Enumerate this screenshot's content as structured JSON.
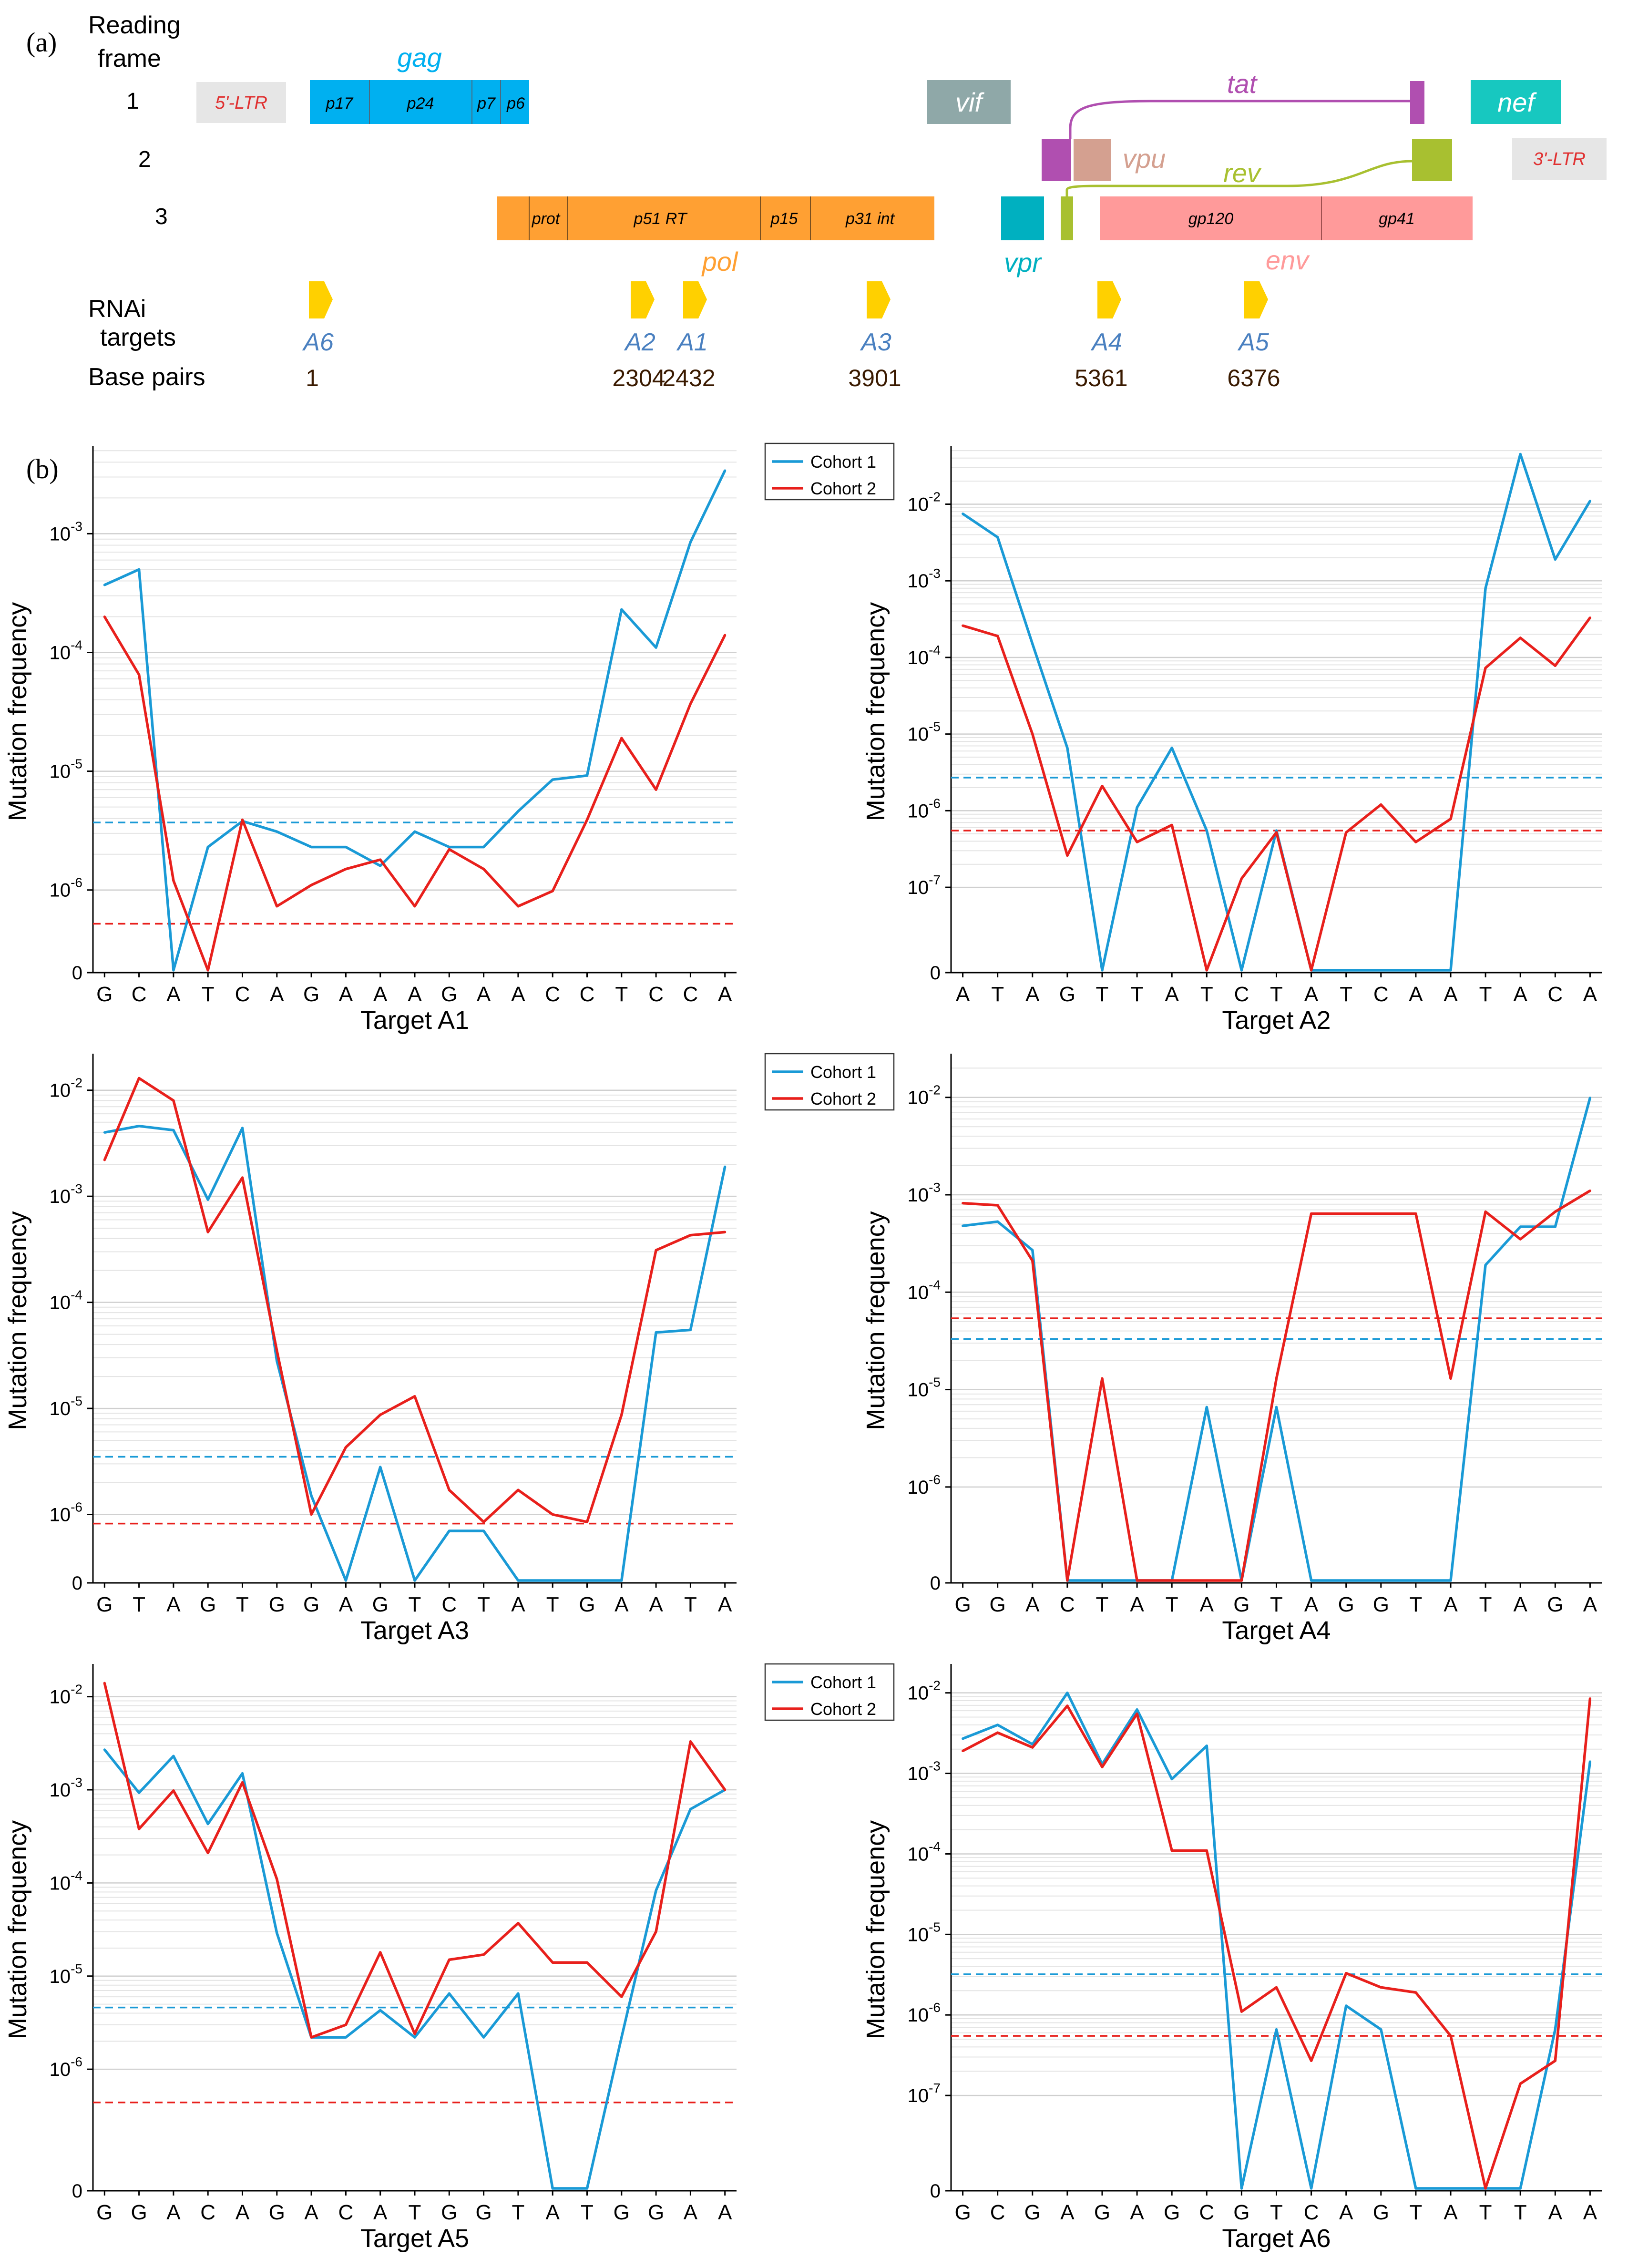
{
  "panel_a": {
    "label": "(a)",
    "reading_frame_label": [
      "Reading",
      "frame"
    ],
    "frames": [
      "1",
      "2",
      "3"
    ],
    "genes": {
      "ltr5": "5'-LTR",
      "gag": "gag",
      "p17": "p17",
      "p24": "p24",
      "p7": "p7",
      "p6": "p6",
      "vif": "vif",
      "tat": "tat",
      "nef": "nef",
      "vpu": "vpu",
      "ltr3": "3'-LTR",
      "rev": "rev",
      "prot": "prot",
      "p51rt": "p51 RT",
      "p15": "p15",
      "p31int": "p31 int",
      "pol": "pol",
      "vpr": "vpr",
      "gp120": "gp120",
      "gp41": "gp41",
      "env": "env"
    },
    "rnai_label": [
      "RNAi",
      "targets"
    ],
    "base_pairs_label": "Base pairs",
    "targets": [
      {
        "name": "A6",
        "bp": "1"
      },
      {
        "name": "A2",
        "bp": "2304"
      },
      {
        "name": "A1",
        "bp": "2432"
      },
      {
        "name": "A3",
        "bp": "3901"
      },
      {
        "name": "A4",
        "bp": "5361"
      },
      {
        "name": "A5",
        "bp": "6376"
      }
    ],
    "colors": {
      "gag": "#00b0f0",
      "pol": "#ffa033",
      "vif": "#8fa8a8",
      "tat": "#b04fb0",
      "nef": "#17c8c0",
      "vpu": "#d4a090",
      "rev": "#a8c030",
      "vpr": "#00b0c0",
      "env": "#ff9a9a",
      "ltr": "#e6e6e6",
      "ltr_text": "#e03030",
      "target": "#ffd000",
      "target_text": "#4a80c0"
    }
  },
  "panel_b_label": "(b)",
  "legend": {
    "cohort1": "Cohort 1",
    "cohort2": "Cohort 2"
  },
  "chart_data": [
    {
      "type": "line",
      "xlabel": "Target A1",
      "ylabel": "Mutation frequency",
      "categories": [
        "G",
        "C",
        "A",
        "T",
        "C",
        "A",
        "G",
        "A",
        "A",
        "A",
        "G",
        "A",
        "A",
        "C",
        "C",
        "T",
        "C",
        "C",
        "A"
      ],
      "ytick_labels": [
        "0",
        "10-6",
        "10-5",
        "10-4",
        "10-3"
      ],
      "ylim_log10": [
        -6.3,
        -2.3
      ],
      "legend": true,
      "series": [
        {
          "name": "Cohort 1",
          "color": "#1a9ad6",
          "values": [
            0.00037,
            0.0005,
            0,
            2.3e-06,
            3.8e-06,
            3.1e-06,
            2.3e-06,
            2.3e-06,
            1.6e-06,
            3.1e-06,
            2.3e-06,
            2.3e-06,
            4.6e-06,
            8.5e-06,
            9.2e-06,
            0.00023,
            0.00011,
            0.00085,
            0.0034
          ]
        },
        {
          "name": "Cohort 2",
          "color": "#e8201c",
          "values": [
            0.0002,
            6.5e-05,
            1.2e-06,
            0,
            3.9e-06,
            7.3e-07,
            1.1e-06,
            1.5e-06,
            1.8e-06,
            7.3e-07,
            2.2e-06,
            1.5e-06,
            7.3e-07,
            9.8e-07,
            3.9e-06,
            1.9e-05,
            7e-06,
            3.7e-05,
            0.00014
          ]
        }
      ],
      "thresholds": [
        {
          "name": "Cohort 1",
          "value": 3.7e-06
        },
        {
          "name": "Cohort 2",
          "value": 5.2e-07
        }
      ]
    },
    {
      "type": "line",
      "xlabel": "Target A2",
      "ylabel": "Mutation frequency",
      "categories": [
        "A",
        "T",
        "A",
        "G",
        "T",
        "T",
        "A",
        "T",
        "C",
        "T",
        "A",
        "T",
        "C",
        "A",
        "A",
        "T",
        "A",
        "C",
        "A"
      ],
      "ytick_labels": [
        "0",
        "10-7",
        "10-6",
        "10-5",
        "10-4",
        "10-3",
        "10-2"
      ],
      "ylim_log10": [
        -7.5,
        -1.3
      ],
      "legend": false,
      "series": [
        {
          "name": "Cohort 1",
          "color": "#1a9ad6",
          "values": [
            0.0075,
            0.0037,
            0.00015,
            6.6e-06,
            0,
            1.1e-06,
            6.6e-06,
            5.5e-07,
            0,
            5.5e-07,
            0,
            0,
            0,
            0,
            0,
            0.0008,
            0.045,
            0.0019,
            0.011
          ]
        },
        {
          "name": "Cohort 2",
          "color": "#e8201c",
          "values": [
            0.00026,
            0.00019,
            1e-05,
            2.6e-07,
            2.1e-06,
            3.9e-07,
            6.5e-07,
            0,
            1.3e-07,
            5.2e-07,
            0,
            5.2e-07,
            1.2e-06,
            3.9e-07,
            7.8e-07,
            7.3e-05,
            0.00018,
            7.8e-05,
            0.00033
          ]
        }
      ],
      "thresholds": [
        {
          "name": "Cohort 1",
          "value": 2.7e-06
        },
        {
          "name": "Cohort 2",
          "value": 5.5e-07
        }
      ]
    },
    {
      "type": "line",
      "xlabel": "Target A3",
      "ylabel": "Mutation frequency",
      "categories": [
        "G",
        "T",
        "A",
        "G",
        "T",
        "G",
        "G",
        "A",
        "G",
        "T",
        "C",
        "T",
        "A",
        "T",
        "G",
        "A",
        "A",
        "T",
        "A"
      ],
      "ytick_labels": [
        "0",
        "10-6",
        "10-5",
        "10-4",
        "10-3",
        "10-2"
      ],
      "ylim_log10": [
        -6.2,
        -1.7
      ],
      "legend": true,
      "series": [
        {
          "name": "Cohort 1",
          "color": "#1a9ad6",
          "values": [
            0.004,
            0.0046,
            0.0042,
            0.00093,
            0.0044,
            2.8e-05,
            1.5e-06,
            0,
            2.8e-06,
            0,
            7e-07,
            7e-07,
            0,
            0,
            0,
            0,
            5.2e-05,
            5.5e-05,
            0.0019
          ]
        },
        {
          "name": "Cohort 2",
          "color": "#e8201c",
          "values": [
            0.0022,
            0.013,
            0.008,
            0.00046,
            0.0015,
            3.5e-05,
            1e-06,
            4.3e-06,
            8.7e-06,
            1.3e-05,
            1.7e-06,
            8.5e-07,
            1.7e-06,
            1e-06,
            8.5e-07,
            8.7e-06,
            0.00031,
            0.00043,
            0.00046
          ]
        }
      ],
      "thresholds": [
        {
          "name": "Cohort 1",
          "value": 3.5e-06
        },
        {
          "name": "Cohort 2",
          "value": 8.2e-07
        }
      ]
    },
    {
      "type": "line",
      "xlabel": "Target A4",
      "ylabel": "Mutation frequency",
      "categories": [
        "G",
        "G",
        "A",
        "C",
        "T",
        "A",
        "T",
        "A",
        "G",
        "T",
        "A",
        "G",
        "G",
        "T",
        "A",
        "T",
        "A",
        "G",
        "A"
      ],
      "ytick_labels": [
        "0",
        "10-6",
        "10-5",
        "10-4",
        "10-3",
        "10-2"
      ],
      "ylim_log10": [
        -6.5,
        -1.6
      ],
      "legend": false,
      "series": [
        {
          "name": "Cohort 1",
          "color": "#1a9ad6",
          "values": [
            0.00048,
            0.00053,
            0.00027,
            0,
            0,
            0,
            0,
            6.6e-06,
            0,
            6.6e-06,
            0,
            0,
            0,
            0,
            0,
            0.00019,
            0.00047,
            0.00047,
            0.0099
          ]
        },
        {
          "name": "Cohort 2",
          "color": "#e8201c",
          "values": [
            0.00082,
            0.00078,
            0.00021,
            0,
            1.3e-05,
            0,
            0,
            0,
            0,
            1.3e-05,
            0.00064,
            0.00064,
            0.00064,
            0.00064,
            1.3e-05,
            0.00067,
            0.00035,
            0.00067,
            0.0011
          ]
        }
      ],
      "thresholds": [
        {
          "name": "Cohort 1",
          "value": 3.3e-05
        },
        {
          "name": "Cohort 2",
          "value": 5.4e-05
        }
      ]
    },
    {
      "type": "line",
      "xlabel": "Target A5",
      "ylabel": "Mutation frequency",
      "categories": [
        "G",
        "G",
        "A",
        "C",
        "A",
        "G",
        "A",
        "C",
        "A",
        "T",
        "G",
        "G",
        "T",
        "A",
        "T",
        "G",
        "G",
        "A",
        "A"
      ],
      "ytick_labels": [
        "0",
        "10-6",
        "10-5",
        "10-4",
        "10-3",
        "10-2"
      ],
      "ylim_log10": [
        -6.8,
        -1.7
      ],
      "legend": true,
      "series": [
        {
          "name": "Cohort 1",
          "color": "#1a9ad6",
          "values": [
            0.0027,
            0.00093,
            0.0023,
            0.00043,
            0.0015,
            2.9e-05,
            2.2e-06,
            2.2e-06,
            4.3e-06,
            2.2e-06,
            6.5e-06,
            2.2e-06,
            6.5e-06,
            0,
            0,
            2.2e-06,
            8.3e-05,
            0.00062,
            0.001
          ]
        },
        {
          "name": "Cohort 2",
          "color": "#e8201c",
          "values": [
            0.014,
            0.00038,
            0.00098,
            0.00021,
            0.0012,
            0.00011,
            2.2e-06,
            3e-06,
            1.8e-05,
            2.4e-06,
            1.5e-05,
            1.7e-05,
            3.7e-05,
            1.4e-05,
            1.4e-05,
            6e-06,
            3e-05,
            0.0033,
            0.001
          ]
        }
      ],
      "thresholds": [
        {
          "name": "Cohort 1",
          "value": 4.6e-06
        },
        {
          "name": "Cohort 2",
          "value": 4.4e-07
        }
      ]
    },
    {
      "type": "line",
      "xlabel": "Target A6",
      "ylabel": "Mutation frequency",
      "categories": [
        "G",
        "C",
        "G",
        "A",
        "G",
        "A",
        "G",
        "C",
        "G",
        "T",
        "C",
        "A",
        "G",
        "T",
        "A",
        "T",
        "T",
        "A",
        "A"
      ],
      "ytick_labels": [
        "0",
        "10-7",
        "10-6",
        "10-5",
        "10-4",
        "10-3",
        "10-2"
      ],
      "ylim_log10": [
        -7.6,
        -1.7
      ],
      "legend": false,
      "series": [
        {
          "name": "Cohort 1",
          "color": "#1a9ad6",
          "values": [
            0.0027,
            0.004,
            0.0023,
            0.01,
            0.0013,
            0.0062,
            0.00085,
            0.0022,
            0,
            6.6e-07,
            0,
            1.3e-06,
            6.6e-07,
            0,
            0,
            0,
            0,
            6.6e-07,
            0.0014
          ]
        },
        {
          "name": "Cohort 2",
          "color": "#e8201c",
          "values": [
            0.0019,
            0.0032,
            0.0021,
            0.0069,
            0.0012,
            0.0055,
            0.00011,
            0.00011,
            1.1e-06,
            2.2e-06,
            2.7e-07,
            3.3e-06,
            2.2e-06,
            1.9e-06,
            5.5e-07,
            0,
            1.4e-07,
            2.7e-07,
            0.0085
          ]
        }
      ],
      "thresholds": [
        {
          "name": "Cohort 1",
          "value": 3.2e-06
        },
        {
          "name": "Cohort 2",
          "value": 5.5e-07
        }
      ]
    }
  ]
}
